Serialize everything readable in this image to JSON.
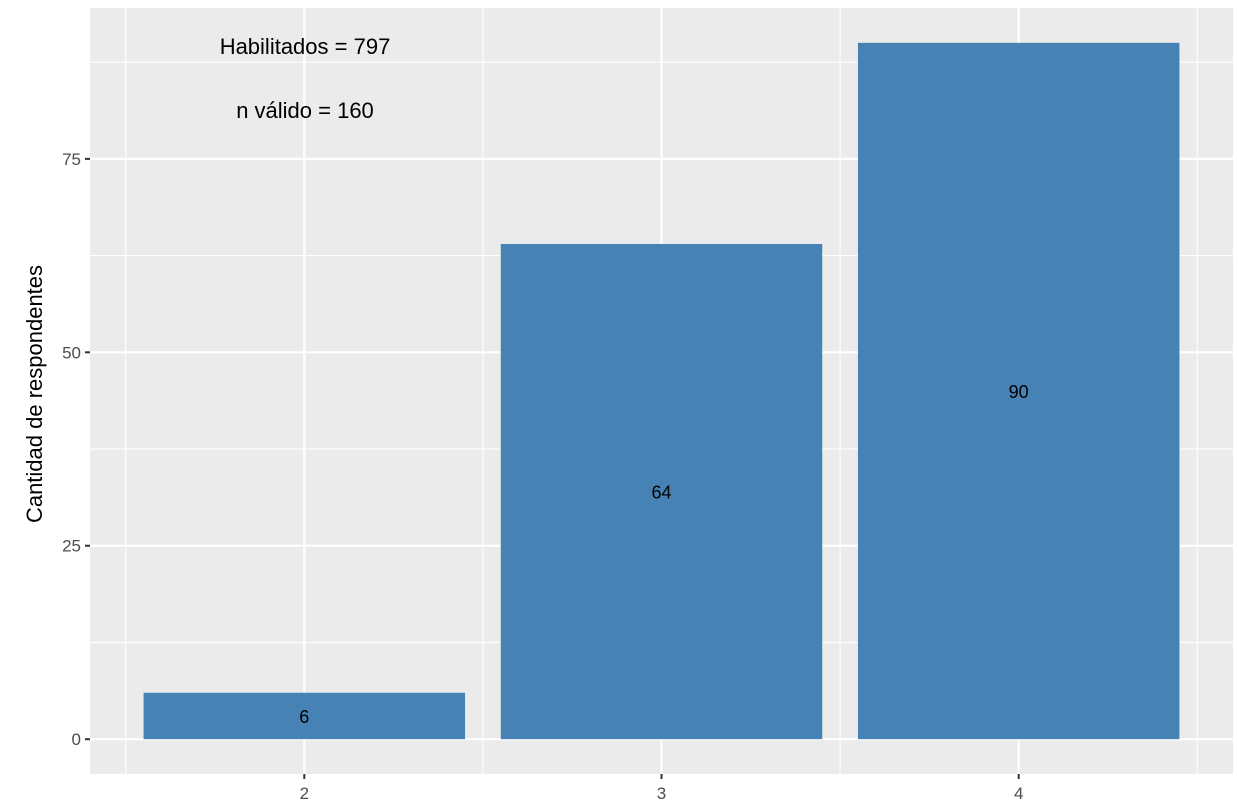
{
  "chart_data": {
    "type": "bar",
    "categories": [
      "2",
      "3",
      "4"
    ],
    "values": [
      6,
      64,
      90
    ],
    "data_labels": [
      "6",
      "64",
      "90"
    ],
    "title": "",
    "xlabel": "",
    "ylabel": "Cantidad de respondentes",
    "ylim": [
      -4.5,
      94.5
    ],
    "yticks": [
      0,
      25,
      50,
      75
    ],
    "ytick_labels": [
      "0",
      "25",
      "50",
      "75"
    ],
    "annotations": [
      "Habilitados =  797",
      "n válido = 160"
    ],
    "grid": true,
    "legend": "none",
    "bar_color": "#4682B4",
    "panel_background": "#EBEBEB",
    "grid_color": "#FFFFFF"
  }
}
